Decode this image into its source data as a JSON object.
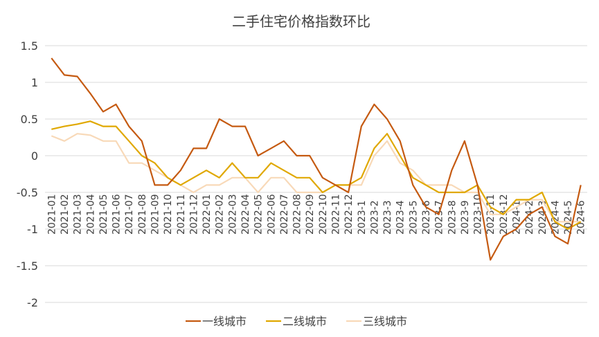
{
  "chart_data": {
    "type": "line",
    "title": "二手住宅价格指数环比",
    "xlabel": "",
    "ylabel": "",
    "ylim": [
      -2,
      1.5
    ],
    "yticks": [
      "1.5",
      "1",
      "0.5",
      "0",
      "-0.5",
      "-1",
      "-1.5",
      "-2"
    ],
    "ytick_values": [
      1.5,
      1,
      0.5,
      0,
      -0.5,
      -1,
      -1.5,
      -2
    ],
    "grid": "horizontal",
    "legend_position": "bottom",
    "categories": [
      "2021-01",
      "2021-02",
      "2021-03",
      "2021-04",
      "2021-05",
      "2021-06",
      "2021-07",
      "2021-08",
      "2021-09",
      "2021-10",
      "2021-11",
      "2021-12",
      "2022-01",
      "2022-02",
      "2022-03",
      "2022-04",
      "2022-05",
      "2022-06",
      "2022-07",
      "2022-08",
      "2022-09",
      "2022-10",
      "2022-11",
      "2022-12",
      "2023-1",
      "2023-2",
      "2023-3",
      "2023-4",
      "2023-5",
      "2023-6",
      "2023-7",
      "2023-8",
      "2023-9",
      "2023-10",
      "2023-11",
      "2023-12",
      "2024-1",
      "2024-2",
      "2024-3",
      "2024-4",
      "2024-5",
      "2024-6"
    ],
    "series": [
      {
        "name": "一线城市",
        "color": "#C55A11",
        "values": [
          1.33,
          1.1,
          1.08,
          0.85,
          0.6,
          0.7,
          0.4,
          0.2,
          -0.4,
          -0.4,
          -0.2,
          0.1,
          0.1,
          0.5,
          0.4,
          0.4,
          0.0,
          0.1,
          0.2,
          0.0,
          0.0,
          -0.3,
          -0.4,
          -0.5,
          0.4,
          0.7,
          0.5,
          0.2,
          -0.4,
          -0.7,
          -0.8,
          -0.2,
          0.2,
          -0.4,
          -1.42,
          -1.1,
          -1.0,
          -0.8,
          -0.7,
          -1.1,
          -1.2,
          -0.4
        ]
      },
      {
        "name": "二线城市",
        "color": "#E0A800",
        "values": [
          0.36,
          0.4,
          0.43,
          0.47,
          0.4,
          0.4,
          0.2,
          0.0,
          -0.1,
          -0.3,
          -0.4,
          -0.3,
          -0.2,
          -0.3,
          -0.1,
          -0.3,
          -0.3,
          -0.1,
          -0.2,
          -0.3,
          -0.3,
          -0.5,
          -0.4,
          -0.4,
          -0.3,
          0.1,
          0.3,
          0.0,
          -0.3,
          -0.4,
          -0.5,
          -0.5,
          -0.5,
          -0.4,
          -0.7,
          -0.8,
          -0.6,
          -0.6,
          -0.5,
          -0.9,
          -1.0,
          -0.9
        ]
      },
      {
        "name": "三线城市",
        "color": "#F8D9B8",
        "values": [
          0.27,
          0.2,
          0.3,
          0.28,
          0.2,
          0.2,
          -0.1,
          -0.1,
          -0.2,
          -0.3,
          -0.4,
          -0.5,
          -0.4,
          -0.4,
          -0.3,
          -0.3,
          -0.5,
          -0.3,
          -0.3,
          -0.5,
          -0.5,
          -0.5,
          -0.4,
          -0.4,
          -0.4,
          0.0,
          0.2,
          -0.1,
          -0.2,
          -0.4,
          -0.4,
          -0.4,
          -0.5,
          -0.5,
          -0.8,
          -0.8,
          -0.7,
          -0.6,
          -0.6,
          -0.9,
          -0.9,
          -0.9
        ]
      }
    ]
  }
}
